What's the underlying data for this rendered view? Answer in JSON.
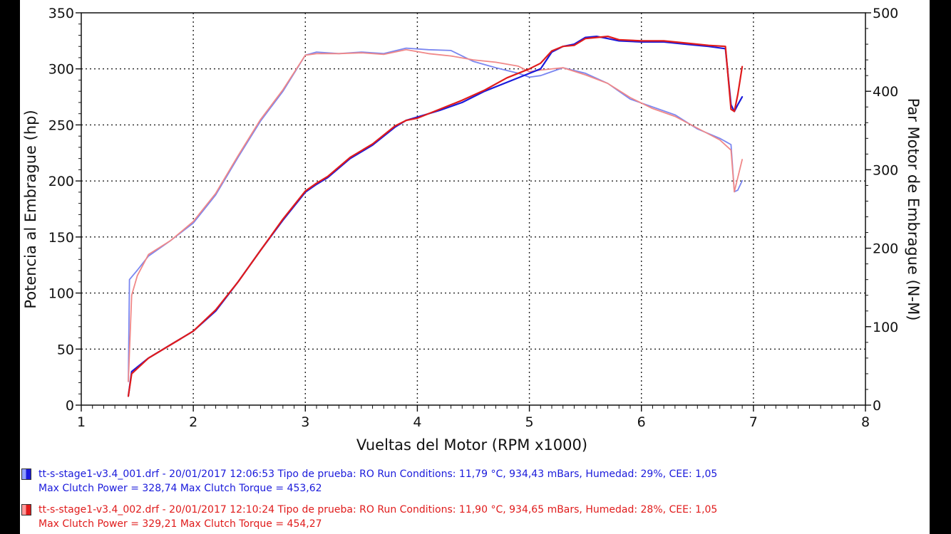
{
  "chart_data": {
    "type": "line",
    "xlabel": "Vueltas del Motor (RPM x1000)",
    "ylabel_left": "Potencia al Embrague (hp)",
    "ylabel_right": "Par Motor de Embrague (N-M)",
    "xlim": [
      1,
      8
    ],
    "ylim_left": [
      0,
      350
    ],
    "ylim_right": [
      0,
      500
    ],
    "x_ticks": [
      1,
      2,
      3,
      4,
      5,
      6,
      7,
      8
    ],
    "y_ticks_left": [
      0,
      50,
      100,
      150,
      200,
      250,
      300,
      350
    ],
    "y_ticks_right": [
      0,
      100,
      200,
      300,
      400,
      500
    ],
    "grid": true,
    "series": [
      {
        "name": "tt-s-stage1-v3.4_001.drf",
        "measure": "power",
        "axis": "left",
        "color": "#1a1adb",
        "x": [
          1.42,
          1.45,
          1.6,
          1.8,
          2.0,
          2.2,
          2.4,
          2.6,
          2.8,
          3.0,
          3.1,
          3.2,
          3.4,
          3.6,
          3.8,
          3.9,
          4.0,
          4.2,
          4.4,
          4.6,
          4.8,
          5.0,
          5.1,
          5.2,
          5.3,
          5.4,
          5.5,
          5.6,
          5.7,
          5.8,
          6.0,
          6.2,
          6.4,
          6.6,
          6.75,
          6.8,
          6.83,
          6.86,
          6.9
        ],
        "y": [
          8,
          30,
          42,
          54,
          66,
          84,
          110,
          138,
          165,
          190,
          197,
          203,
          220,
          232,
          248,
          254,
          257,
          263,
          270,
          280,
          288,
          296,
          300,
          315,
          320,
          322,
          328,
          329,
          327,
          325,
          324,
          324,
          322,
          320,
          318,
          268,
          262,
          268,
          275
        ]
      },
      {
        "name": "tt-s-stage1-v3.4_002.drf",
        "measure": "power",
        "axis": "left",
        "color": "#e01b1b",
        "x": [
          1.42,
          1.45,
          1.6,
          1.8,
          2.0,
          2.2,
          2.4,
          2.6,
          2.8,
          3.0,
          3.1,
          3.2,
          3.4,
          3.6,
          3.8,
          3.9,
          4.0,
          4.2,
          4.4,
          4.6,
          4.8,
          5.0,
          5.1,
          5.2,
          5.3,
          5.4,
          5.5,
          5.6,
          5.7,
          5.8,
          6.0,
          6.2,
          6.4,
          6.6,
          6.75,
          6.8,
          6.83,
          6.86,
          6.9
        ],
        "y": [
          8,
          28,
          42,
          54,
          66,
          85,
          110,
          138,
          166,
          191,
          198,
          204,
          221,
          233,
          249,
          254,
          256,
          264,
          272,
          281,
          292,
          300,
          305,
          316,
          320,
          321,
          327,
          328,
          329,
          326,
          325,
          325,
          323,
          321,
          320,
          264,
          262,
          277,
          302
        ]
      },
      {
        "name": "tt-s-stage1-v3.4_001.drf",
        "measure": "torque",
        "axis": "right",
        "color": "#7a86f0",
        "x": [
          1.42,
          1.43,
          1.5,
          1.6,
          1.8,
          2.0,
          2.2,
          2.4,
          2.6,
          2.8,
          3.0,
          3.1,
          3.3,
          3.5,
          3.7,
          3.9,
          4.1,
          4.3,
          4.5,
          4.7,
          4.9,
          5.0,
          5.1,
          5.3,
          5.5,
          5.7,
          5.9,
          6.1,
          6.3,
          6.5,
          6.7,
          6.8,
          6.83,
          6.86,
          6.9
        ],
        "y": [
          30,
          160,
          172,
          190,
          210,
          232,
          268,
          316,
          362,
          400,
          446,
          450,
          448,
          450,
          448,
          455,
          453,
          452,
          438,
          430,
          423,
          418,
          420,
          430,
          423,
          410,
          390,
          380,
          370,
          352,
          340,
          332,
          272,
          274,
          286
        ]
      },
      {
        "name": "tt-s-stage1-v3.4_002.drf",
        "measure": "torque",
        "axis": "right",
        "color": "#f08888",
        "x": [
          1.42,
          1.45,
          1.5,
          1.6,
          1.8,
          2.0,
          2.2,
          2.4,
          2.6,
          2.8,
          3.0,
          3.1,
          3.3,
          3.5,
          3.7,
          3.9,
          4.1,
          4.3,
          4.5,
          4.7,
          4.9,
          5.0,
          5.1,
          5.3,
          5.5,
          5.7,
          5.9,
          6.1,
          6.3,
          6.5,
          6.7,
          6.8,
          6.83,
          6.86,
          6.9
        ],
        "y": [
          30,
          140,
          165,
          192,
          210,
          234,
          270,
          318,
          364,
          402,
          446,
          448,
          448,
          449,
          447,
          453,
          448,
          445,
          440,
          437,
          432,
          425,
          427,
          430,
          421,
          410,
          392,
          378,
          368,
          353,
          338,
          325,
          272,
          290,
          313
        ]
      }
    ]
  },
  "legend": [
    {
      "color": "#1a1adb",
      "line1": "tt-s-stage1-v3.4_001.drf - 20/01/2017 12:06:53  Tipo de prueba: RO  Run Conditions: 11,79 °C, 934,43 mBars,  Humedad: 29%, CEE: 1,05",
      "line2": "Max Clutch Power = 328,74  Max Clutch Torque = 453,62"
    },
    {
      "color": "#e01b1b",
      "line1": "tt-s-stage1-v3.4_002.drf - 20/01/2017 12:10:24  Tipo de prueba: RO  Run Conditions: 11,90 °C, 934,65 mBars,  Humedad: 28%, CEE: 1,05",
      "line2": "Max Clutch Power = 329,21  Max Clutch Torque = 454,27"
    }
  ]
}
